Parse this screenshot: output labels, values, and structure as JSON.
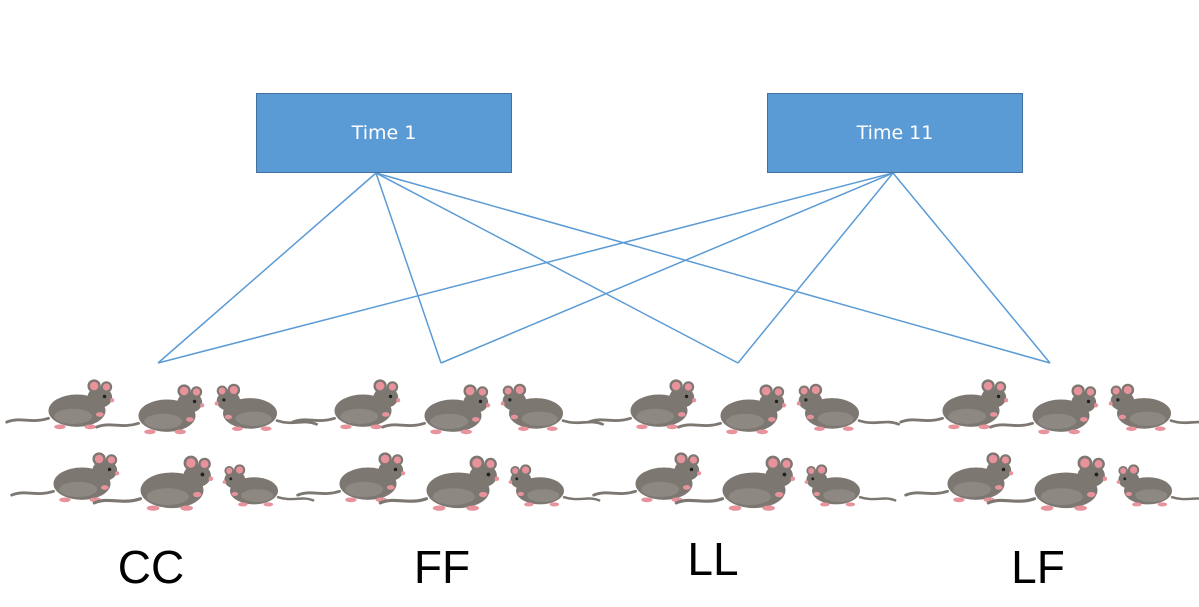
{
  "time_points": [
    {
      "label": "Time 1"
    },
    {
      "label": "Time 11"
    }
  ],
  "groups": [
    {
      "label": "CC"
    },
    {
      "label": "FF"
    },
    {
      "label": "LL"
    },
    {
      "label": "LF"
    }
  ],
  "connections": [
    {
      "from": "Time 1",
      "to": "CC"
    },
    {
      "from": "Time 1",
      "to": "FF"
    },
    {
      "from": "Time 1",
      "to": "LL"
    },
    {
      "from": "Time 1",
      "to": "LF"
    },
    {
      "from": "Time 11",
      "to": "CC"
    },
    {
      "from": "Time 11",
      "to": "FF"
    },
    {
      "from": "Time 11",
      "to": "LL"
    },
    {
      "from": "Time 11",
      "to": "LF"
    }
  ],
  "colors": {
    "box_fill": "#5b9bd5",
    "box_border": "#41719c",
    "line": "#5b9bd5",
    "mouse_body": "#7d7772",
    "mouse_pink": "#e8929c"
  },
  "icons": {
    "group_icon": "mouse-icon"
  }
}
